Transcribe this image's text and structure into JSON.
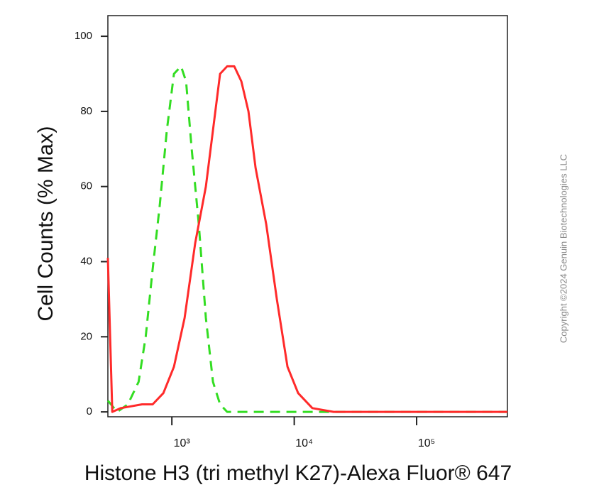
{
  "chart_data": {
    "type": "line",
    "xlabel": "Histone H3 (tri methyl K27)-Alexa Fluor® 647",
    "ylabel": "Cell Counts (% Max)",
    "annotation": "Copyright ©2024 Genuin Biotechnologies LLC",
    "xscale": "log",
    "xlim": [
      300,
      552000
    ],
    "ylim": [
      -1.3,
      105.5
    ],
    "xticks": [
      {
        "value": 1000,
        "label": "10³"
      },
      {
        "value": 10000,
        "label": "10⁴"
      },
      {
        "value": 100000,
        "label": "10⁵"
      }
    ],
    "yticks": [
      0,
      20,
      40,
      60,
      80,
      100
    ],
    "series": [
      {
        "color": "#ff2a2a",
        "dash": false,
        "x": [
          300,
          326,
          383,
          571,
          697,
          852,
          1040,
          1271,
          1553,
          1897,
          2167,
          2477,
          2831,
          3236,
          3698,
          4227,
          4831,
          5902,
          7211,
          8810,
          10760,
          14060,
          20990,
          552000
        ],
        "values": [
          41,
          0,
          1,
          2,
          2,
          5,
          12,
          25,
          45,
          60,
          75,
          90,
          92,
          92,
          88,
          80,
          65,
          50,
          30,
          12,
          5,
          1,
          0,
          0
        ]
      },
      {
        "color": "#33dd22",
        "dash": true,
        "x": [
          300,
          358,
          437,
          535,
          611,
          697,
          796,
          910,
          1040,
          1189,
          1306,
          1453,
          1660,
          1897,
          2167,
          2477,
          2831,
          552000
        ],
        "values": [
          3,
          0,
          2,
          8,
          20,
          38,
          55,
          75,
          90,
          92,
          88,
          70,
          50,
          25,
          8,
          2,
          0,
          0
        ]
      }
    ]
  }
}
